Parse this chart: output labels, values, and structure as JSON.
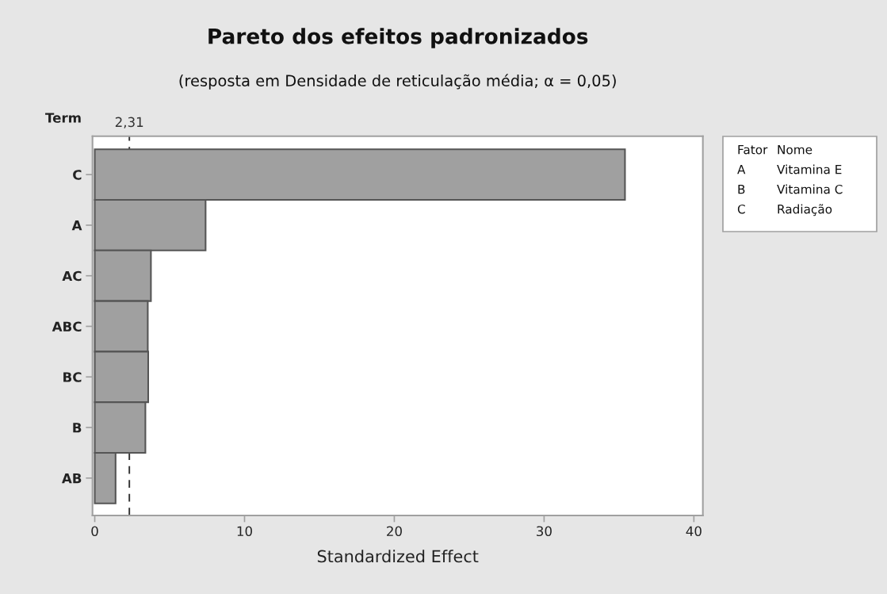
{
  "chart_data": {
    "type": "bar",
    "orientation": "horizontal",
    "title": "Pareto dos efeitos padronizados",
    "subtitle": "(resposta em Densidade de reticulação média; α = 0,05)",
    "xlabel": "Standardized Effect",
    "ylabel": "Term",
    "categories": [
      "C",
      "A",
      "AC",
      "ABC",
      "BC",
      "B",
      "AB"
    ],
    "values": [
      35.4,
      7.4,
      3.75,
      3.54,
      3.57,
      3.38,
      1.39
    ],
    "color": "#a0a0a0",
    "xlim": [
      -0.15,
      40.6
    ],
    "xticks": [
      0,
      10,
      20,
      30,
      40
    ],
    "ref_lines": [
      {
        "axis": "x",
        "value": 2.31,
        "label": "2,31",
        "line_style": "dashed",
        "color": "#333333"
      }
    ],
    "annotations": [
      "Fator\tNome",
      "A\tVitamina E",
      "B\tVitamina C",
      "C\tRadiação"
    ],
    "grid": false,
    "legend": false
  }
}
